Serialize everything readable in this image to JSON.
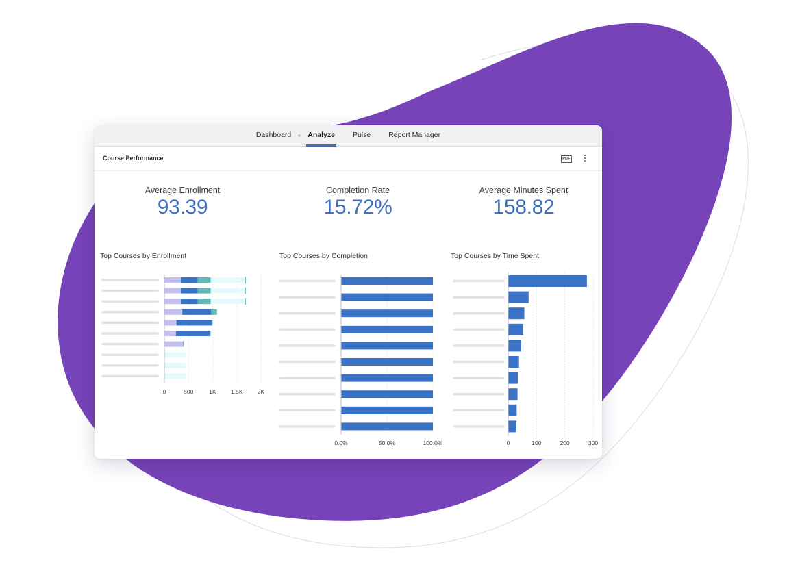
{
  "nav": {
    "tabs": [
      {
        "label": "Dashboard",
        "active": false
      },
      {
        "label": "Analyze",
        "active": true
      },
      {
        "label": "Pulse",
        "active": false
      },
      {
        "label": "Report Manager",
        "active": false
      }
    ]
  },
  "header": {
    "title": "Course Performance",
    "pdf_label": "PDF",
    "more_icon": "more-vertical-icon"
  },
  "kpis": [
    {
      "label": "Average Enrollment",
      "value": "93.39"
    },
    {
      "label": "Completion Rate",
      "value": "15.72%"
    },
    {
      "label": "Average Minutes Spent",
      "value": "158.82"
    }
  ],
  "colors": {
    "brand_purple": "#7743b9",
    "bar_blue": "#3a73c6",
    "lavender": "#c3c0f0",
    "teal": "#5fb9b8",
    "pale_cyan": "#e6fafd",
    "accent": "#3f72c2"
  },
  "chart_data": [
    {
      "type": "bar",
      "orientation": "horizontal",
      "stacked": true,
      "title": "Top Courses by Enrollment",
      "categories": [
        "",
        "",
        "",
        "",
        "",
        "",
        "",
        "",
        "",
        ""
      ],
      "xlim": [
        0,
        2000
      ],
      "x_ticks": [
        "0",
        "500",
        "1K",
        "1.5K",
        "2K"
      ],
      "x_tick_values": [
        0,
        500,
        1000,
        1500,
        2000
      ],
      "grid": true,
      "series": [
        {
          "color": "#c3c0f0",
          "values": [
            340,
            340,
            340,
            370,
            250,
            240,
            380,
            0,
            0,
            0
          ]
        },
        {
          "color": "#3a73c6",
          "values": [
            350,
            350,
            350,
            600,
            730,
            700,
            0,
            0,
            0,
            0
          ]
        },
        {
          "color": "#5fb9b8",
          "values": [
            270,
            270,
            270,
            120,
            20,
            20,
            20,
            0,
            0,
            0
          ]
        },
        {
          "color": "#e6fafd",
          "values": [
            730,
            730,
            730,
            0,
            0,
            0,
            0,
            450,
            450,
            450
          ]
        }
      ]
    },
    {
      "type": "bar",
      "orientation": "horizontal",
      "title": "Top Courses by Completion",
      "categories": [
        "",
        "",
        "",
        "",
        "",
        "",
        "",
        "",
        "",
        ""
      ],
      "values": [
        100,
        100,
        100,
        100,
        100,
        100,
        100,
        100,
        100,
        100
      ],
      "xlim": [
        0,
        100
      ],
      "x_ticks": [
        "0.0%",
        "50.0%",
        "100.0%"
      ],
      "x_tick_values": [
        0,
        50,
        100
      ],
      "grid": true
    },
    {
      "type": "bar",
      "orientation": "horizontal",
      "title": "Top Courses by Time Spent",
      "categories": [
        "",
        "",
        "",
        "",
        "",
        "",
        "",
        "",
        "",
        ""
      ],
      "values": [
        278,
        72,
        57,
        53,
        46,
        38,
        34,
        33,
        30,
        29
      ],
      "xlim": [
        0,
        300
      ],
      "x_ticks": [
        "0",
        "100",
        "200",
        "300"
      ],
      "x_tick_values": [
        0,
        100,
        200,
        300
      ],
      "grid": true
    }
  ]
}
